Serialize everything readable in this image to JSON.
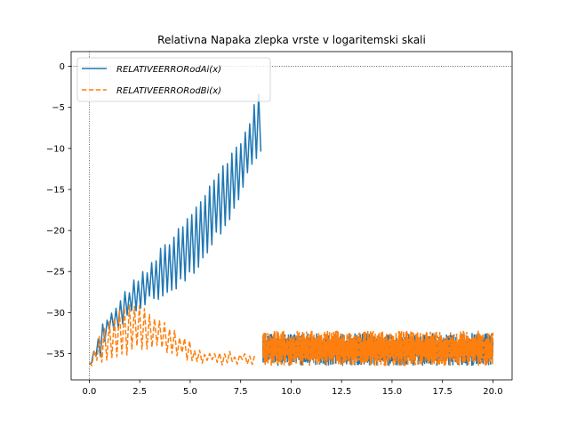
{
  "chart_data": {
    "type": "line",
    "title": "Relativna Napaka zlepka vrste v logaritemski skali",
    "xlabel": "",
    "ylabel": "",
    "xlim": [
      -0.9,
      20.95
    ],
    "ylim": [
      -38.2,
      1.8
    ],
    "xticks": [
      0.0,
      2.5,
      5.0,
      7.5,
      10.0,
      12.5,
      15.0,
      17.5,
      20.0
    ],
    "xtick_labels": [
      "0.0",
      "2.5",
      "5.0",
      "7.5",
      "10.0",
      "12.5",
      "15.0",
      "17.5",
      "20.0"
    ],
    "yticks": [
      0,
      -5,
      -10,
      -15,
      -20,
      -25,
      -30,
      -35
    ],
    "ytick_labels": [
      "0",
      "−5",
      "−10",
      "−15",
      "−20",
      "−25",
      "−30",
      "−35"
    ],
    "reference_lines": {
      "horizontal_y": 0,
      "vertical_x": 0,
      "style": "dotted"
    },
    "legend": {
      "position": "top-left"
    },
    "colors": {
      "ai": "#1f77b4",
      "bi": "#ff7f0e"
    },
    "series": [
      {
        "name": "RELATIVEERRORodAi(x)",
        "style": "solid",
        "envelope_x": [
          0.0,
          0.5,
          1.0,
          2.0,
          3.0,
          4.0,
          5.0,
          6.0,
          7.0,
          7.5,
          8.0,
          8.5
        ],
        "envelope_upper": [
          -35.5,
          -32,
          -29.5,
          -26.5,
          -23.7,
          -20.5,
          -17.5,
          -14,
          -10.5,
          -8.5,
          -6,
          -2
        ],
        "envelope_lower": [
          -36.5,
          -36.5,
          -33,
          -31,
          -29,
          -28,
          -26,
          -22.5,
          -18.5,
          -16,
          -13,
          -11
        ],
        "segment2": {
          "x_range": [
            8.6,
            20.0
          ],
          "y_upper": -32.5,
          "y_lower": -36.5
        }
      },
      {
        "name": "RELATIVEERRORodBi(x)",
        "style": "dashed",
        "envelope_x": [
          0.0,
          0.3,
          0.7,
          1.2,
          2.0,
          2.5,
          3.0,
          4.0,
          5.0,
          5.5,
          6.0,
          7.0,
          8.2
        ],
        "envelope_upper": [
          -36,
          -34,
          -31.5,
          -30,
          -29,
          -29.2,
          -29.8,
          -31.5,
          -33.5,
          -34.5,
          -34.7,
          -34.7,
          -34.7
        ],
        "envelope_lower": [
          -36.5,
          -36.5,
          -36.5,
          -36,
          -35,
          -34.5,
          -34.5,
          -35,
          -36,
          -36.5,
          -36.5,
          -36.5,
          -36.5
        ],
        "segment2": {
          "x_range": [
            8.6,
            20.0
          ],
          "y_upper": -32.2,
          "y_lower": -36.5
        }
      }
    ]
  }
}
